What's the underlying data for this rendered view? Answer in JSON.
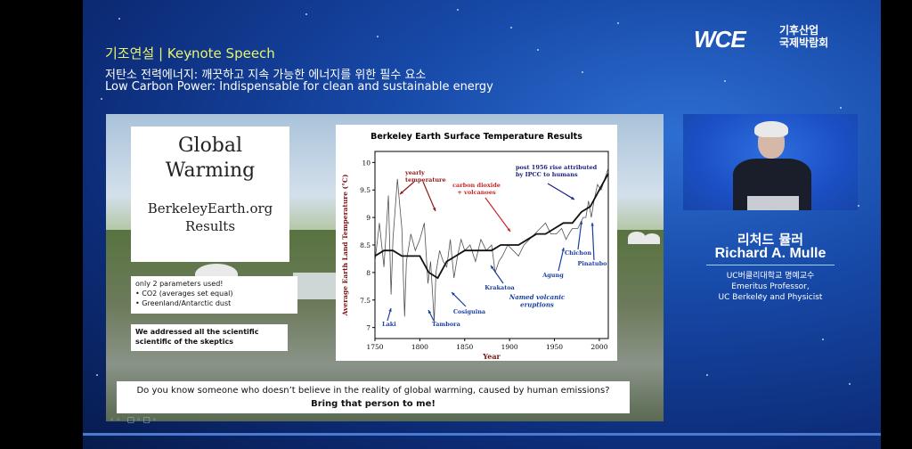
{
  "header": {
    "kicker": "기조연설 | Keynote Speech",
    "subtitle_ko": "저탄소 전력에너지: 깨끗하고 지속 가능한 에너지를 위한 필수 요소",
    "subtitle_en": "Low Carbon Power: Indispensable for clean and sustainable energy"
  },
  "logo": {
    "mark": "WCE",
    "text_line1": "기후산업",
    "text_line2": "국제박람회"
  },
  "slide": {
    "title_line1": "Global",
    "title_line2": "Warming",
    "site_line1": "BerkeleyEarth.org",
    "site_line2": "Results",
    "params_heading": "only 2 parameters used!",
    "params_items": [
      "CO2 (averages set equal)",
      "Greenland/Antarctic dust"
    ],
    "addressed_line1": "We addressed all the scientific",
    "addressed_line2": "scientific of the skeptics",
    "question": "Do you know someone who doesn’t believe in the reality of global warming, caused by human emissions?",
    "question_strong": "Bring that person to me!"
  },
  "chart_data": {
    "type": "line",
    "title": "Berkeley Earth Surface Temperature Results",
    "xlabel": "Year",
    "ylabel": "Average Earth Land Temperature (°C)",
    "xlim": [
      1750,
      2010
    ],
    "ylim": [
      6.8,
      10.2
    ],
    "xticks": [
      1750,
      1800,
      1850,
      1900,
      1950,
      2000
    ],
    "yticks": [
      7,
      7.5,
      8,
      8.5,
      9,
      9.5,
      10
    ],
    "series": [
      {
        "name": "yearly temperature",
        "color": "#333333",
        "x": [
          1750,
          1755,
          1760,
          1765,
          1768,
          1770,
          1775,
          1780,
          1783,
          1785,
          1790,
          1795,
          1800,
          1805,
          1809,
          1812,
          1815,
          1816,
          1818,
          1822,
          1826,
          1830,
          1834,
          1838,
          1842,
          1846,
          1850,
          1856,
          1862,
          1868,
          1874,
          1880,
          1884,
          1888,
          1892,
          1898,
          1904,
          1910,
          1916,
          1922,
          1928,
          1934,
          1940,
          1946,
          1952,
          1958,
          1963,
          1966,
          1970,
          1976,
          1982,
          1985,
          1988,
          1991,
          1994,
          1998,
          2002,
          2006,
          2010
        ],
        "y": [
          8.2,
          8.9,
          8.1,
          9.4,
          7.6,
          8.6,
          9.7,
          8.8,
          7.2,
          8.2,
          8.7,
          8.4,
          8.6,
          8.9,
          7.8,
          8.2,
          7.4,
          7.1,
          8.0,
          8.4,
          8.2,
          8.1,
          8.6,
          7.9,
          8.3,
          8.6,
          8.4,
          8.5,
          8.2,
          8.6,
          8.4,
          8.5,
          8.0,
          8.2,
          8.3,
          8.5,
          8.4,
          8.3,
          8.5,
          8.6,
          8.7,
          8.8,
          8.9,
          8.7,
          8.7,
          8.8,
          8.6,
          8.7,
          8.8,
          8.8,
          9.0,
          9.0,
          9.3,
          9.0,
          9.3,
          9.6,
          9.5,
          9.7,
          9.9
        ]
      },
      {
        "name": "carbon dioxide + volcanoes",
        "color": "#111111",
        "x": [
          1750,
          1760,
          1770,
          1780,
          1790,
          1800,
          1810,
          1820,
          1830,
          1840,
          1850,
          1860,
          1870,
          1880,
          1890,
          1900,
          1910,
          1920,
          1930,
          1940,
          1950,
          1960,
          1970,
          1980,
          1990,
          2000,
          2010
        ],
        "y": [
          8.3,
          8.4,
          8.4,
          8.3,
          8.3,
          8.3,
          8.0,
          7.9,
          8.2,
          8.3,
          8.4,
          8.4,
          8.4,
          8.4,
          8.5,
          8.5,
          8.5,
          8.6,
          8.7,
          8.7,
          8.8,
          8.9,
          8.9,
          9.1,
          9.2,
          9.5,
          9.8
        ]
      }
    ],
    "annotations": [
      {
        "text": "yearly temperature",
        "color": "#8b1a1a"
      },
      {
        "text": "carbon dioxide + volcanoes",
        "color": "#c62828"
      },
      {
        "text": "post 1956 rise attributed by IPCC to humans",
        "color": "#1a237e"
      },
      {
        "text": "Laki",
        "color": "#1a3fa0"
      },
      {
        "text": "Tambora",
        "color": "#1a3fa0"
      },
      {
        "text": "Cosiguina",
        "color": "#1a3fa0"
      },
      {
        "text": "Krakatoa",
        "color": "#1a3fa0"
      },
      {
        "text": "Agung",
        "color": "#1a3fa0"
      },
      {
        "text": "Chichon",
        "color": "#1a3fa0"
      },
      {
        "text": "Pinatubo",
        "color": "#1a3fa0"
      },
      {
        "text": "Named volcanic eruptions",
        "color": "#1a3fa0"
      }
    ]
  },
  "speaker": {
    "name_ko": "리처드 뮬러",
    "name_en": "Richard A. Mulle",
    "aff_ko": "UC버클리대학교 명예교수",
    "aff_en1": "Emeritus Professor,",
    "aff_en2": "UC Berkeley and Physicist"
  },
  "player": {
    "progress": 0
  }
}
